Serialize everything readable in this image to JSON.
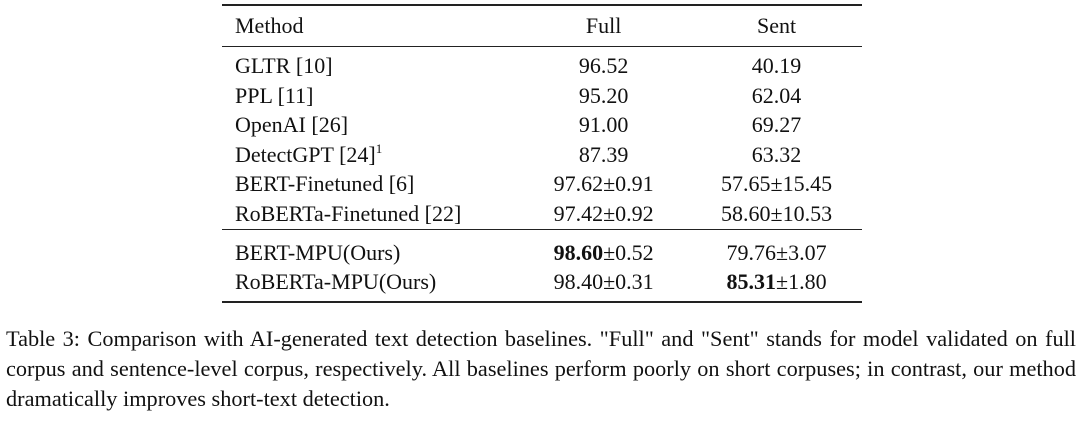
{
  "table": {
    "header": [
      "Method",
      "Full",
      "Sent"
    ],
    "groups": [
      [
        [
          "GLTR [10]",
          "96.52",
          "40.19"
        ],
        [
          "PPL [11]",
          "95.20",
          "62.04"
        ],
        [
          "OpenAI [26]",
          "91.00",
          "69.27"
        ],
        [
          {
            "text": "DetectGPT [24]",
            "sup": "1"
          },
          "87.39",
          "63.32"
        ],
        [
          "BERT-Finetuned [6]",
          "97.62±0.91",
          "57.65±15.45"
        ],
        [
          "RoBERTa-Finetuned [22]",
          "97.42±0.92",
          "58.60±10.53"
        ]
      ],
      [
        [
          "BERT-MPU(Ours)",
          {
            "bold": "98.60",
            "rest": "±0.52"
          },
          "79.76±3.07"
        ],
        [
          "RoBERTa-MPU(Ours)",
          "98.40±0.31",
          {
            "bold": "85.31",
            "rest": "±1.80"
          }
        ]
      ]
    ]
  },
  "caption": "Table 3: Comparison with AI-generated text detection baselines. \"Full\" and \"Sent\" stands for model validated on full corpus and sentence-level corpus, respectively. All baselines perform poorly on short corpuses; in contrast, our method dramatically improves short-text detection."
}
